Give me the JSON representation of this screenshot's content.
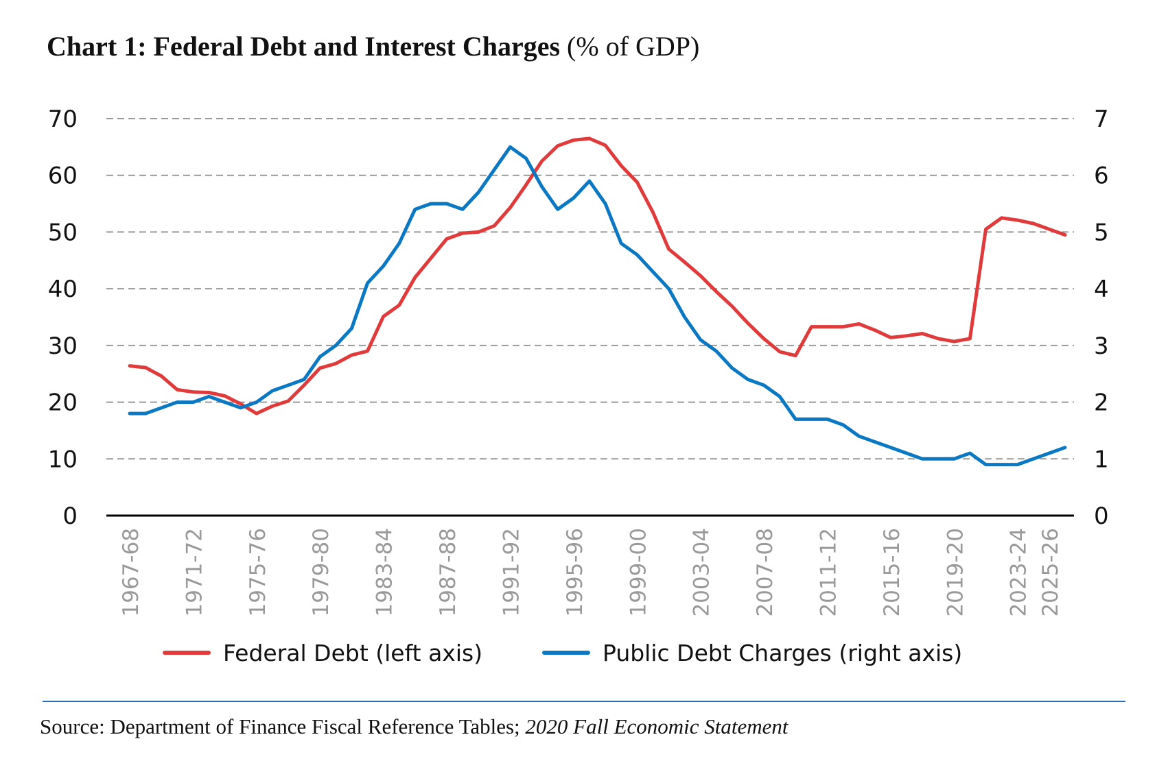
{
  "title": {
    "main": "Chart 1: Federal Debt and Interest Charges",
    "unit": "(% of GDP)"
  },
  "legend": {
    "red_label": "Federal Debt (left axis)",
    "blue_label": "Public Debt Charges (right axis)"
  },
  "source": {
    "prefix": "Source: Department of Finance Fiscal Reference Tables;",
    "italic": "2020 Fall Economic Statement"
  },
  "colors": {
    "federal_debt": "#e03a3a",
    "public_debt_charges": "#0a78c2",
    "grid": "#999999",
    "tick_label_x": "#999999",
    "source_rule": "#2b6cb0"
  },
  "chart_data": {
    "type": "line",
    "title": "Federal Debt and Interest Charges",
    "x": [
      "1967-68",
      "1968-69",
      "1969-70",
      "1970-71",
      "1971-72",
      "1972-73",
      "1973-74",
      "1974-75",
      "1975-76",
      "1976-77",
      "1977-78",
      "1978-79",
      "1979-80",
      "1980-81",
      "1981-82",
      "1982-83",
      "1983-84",
      "1984-85",
      "1985-86",
      "1986-87",
      "1987-88",
      "1988-89",
      "1989-90",
      "1990-91",
      "1991-92",
      "1992-93",
      "1993-94",
      "1994-95",
      "1995-96",
      "1996-97",
      "1997-98",
      "1998-99",
      "1999-00",
      "2000-01",
      "2001-02",
      "2002-03",
      "2003-04",
      "2004-05",
      "2005-06",
      "2006-07",
      "2007-08",
      "2008-09",
      "2009-10",
      "2010-11",
      "2011-12",
      "2012-13",
      "2013-14",
      "2014-15",
      "2015-16",
      "2016-17",
      "2017-18",
      "2018-19",
      "2019-20",
      "2020-21",
      "2021-22",
      "2022-23",
      "2023-24",
      "2024-25",
      "2025-26",
      "2026-27"
    ],
    "x_tick_labels": [
      "1967-68",
      "1971-72",
      "1975-76",
      "1979-80",
      "1983-84",
      "1987-88",
      "1991-92",
      "1995-96",
      "1999-00",
      "2003-04",
      "2007-08",
      "2011-12",
      "2015-16",
      "2019-20",
      "2023-24",
      "2025-26"
    ],
    "series": [
      {
        "name": "Federal Debt (left axis)",
        "axis": "left",
        "values": [
          26.4,
          26.1,
          24.6,
          22.2,
          21.8,
          21.7,
          21.1,
          19.7,
          18.0,
          19.3,
          20.2,
          23.0,
          26.0,
          26.8,
          28.3,
          29.0,
          35.1,
          37.1,
          42.0,
          45.4,
          48.8,
          49.8,
          50.0,
          51.1,
          54.3,
          58.3,
          62.5,
          65.2,
          66.2,
          66.5,
          65.3,
          61.7,
          58.8,
          53.5,
          47.0,
          44.7,
          42.3,
          39.5,
          36.9,
          33.9,
          31.2,
          28.9,
          28.2,
          33.3,
          33.3,
          33.3,
          33.8,
          32.7,
          31.4,
          31.7,
          32.1,
          31.2,
          30.7,
          31.2,
          50.5,
          52.5,
          52.1,
          51.5,
          50.5,
          49.5
        ]
      },
      {
        "name": "Public Debt Charges (right axis)",
        "axis": "right",
        "values": [
          1.8,
          1.8,
          1.9,
          2.0,
          2.0,
          2.1,
          2.0,
          1.9,
          2.0,
          2.2,
          2.3,
          2.4,
          2.8,
          3.0,
          3.3,
          4.1,
          4.4,
          4.8,
          5.4,
          5.5,
          5.5,
          5.4,
          5.7,
          6.1,
          6.5,
          6.3,
          5.8,
          5.4,
          5.6,
          5.9,
          5.5,
          4.8,
          4.6,
          4.3,
          4.0,
          3.5,
          3.1,
          2.9,
          2.6,
          2.4,
          2.3,
          2.1,
          1.7,
          1.7,
          1.7,
          1.6,
          1.4,
          1.3,
          1.2,
          1.1,
          1.0,
          1.0,
          1.0,
          1.1,
          0.9,
          0.9,
          0.9,
          1.0,
          1.1,
          1.2
        ]
      }
    ],
    "y_left": {
      "ylim": [
        0,
        70
      ],
      "ticks": [
        0,
        10,
        20,
        30,
        40,
        50,
        60,
        70
      ]
    },
    "y_right": {
      "ylim": [
        0,
        7
      ],
      "ticks": [
        0,
        1,
        2,
        3,
        4,
        5,
        6,
        7
      ]
    },
    "grid": "dashed horizontal",
    "legend_position": "bottom"
  }
}
